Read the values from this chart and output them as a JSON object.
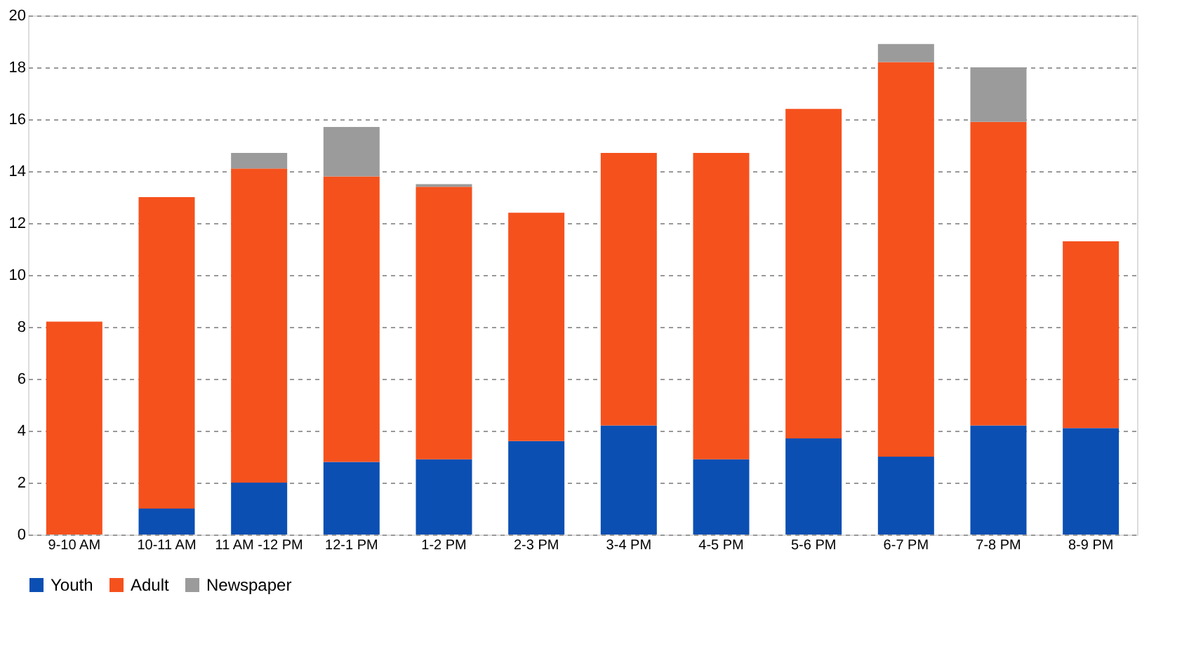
{
  "chart_data": {
    "type": "bar",
    "stacked": true,
    "categories": [
      "9-10 AM",
      "10-11 AM",
      "11 AM -12 PM",
      "12-1 PM",
      "1-2 PM",
      "2-3 PM",
      "3-4 PM",
      "4-5 PM",
      "5-6 PM",
      "6-7 PM",
      "7-8 PM",
      "8-9 PM"
    ],
    "series": [
      {
        "name": "Youth",
        "color": "#0b4fb3",
        "values": [
          null,
          1.0,
          2.0,
          2.8,
          2.9,
          3.6,
          4.2,
          2.9,
          3.7,
          3.0,
          4.2,
          4.1
        ]
      },
      {
        "name": "Adult",
        "color": "#f5511d",
        "values": [
          8.2,
          12.0,
          12.1,
          11.0,
          10.5,
          8.8,
          10.5,
          11.8,
          12.7,
          15.2,
          11.7,
          7.2
        ]
      },
      {
        "name": "Newspaper",
        "color": "#9b9b9b",
        "values": [
          null,
          null,
          0.6,
          1.9,
          0.1,
          null,
          null,
          null,
          null,
          0.7,
          2.1,
          null
        ]
      }
    ],
    "ylim": [
      0,
      20
    ],
    "yticks": [
      0,
      2,
      4,
      6,
      8,
      10,
      12,
      14,
      16,
      18,
      20
    ],
    "grid": "y",
    "legend": "bottom"
  }
}
